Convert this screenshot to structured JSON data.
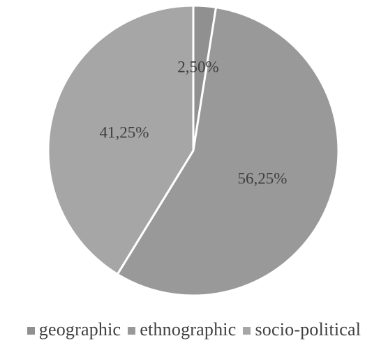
{
  "chart_data": {
    "type": "pie",
    "title": "",
    "slices": [
      {
        "name": "geographic",
        "value": 2.5,
        "label": "2,50%",
        "color": "#909090"
      },
      {
        "name": "ethnographic",
        "value": 56.25,
        "label": "56,25%",
        "color": "#999999"
      },
      {
        "name": "socio-political",
        "value": 41.25,
        "label": "41,25%",
        "color": "#a6a6a6"
      }
    ],
    "start_angle": "12 o'clock",
    "direction": "clockwise",
    "slice_separator_color": "#ffffff",
    "legend_position": "bottom",
    "label_color": "#3f3f3f"
  }
}
